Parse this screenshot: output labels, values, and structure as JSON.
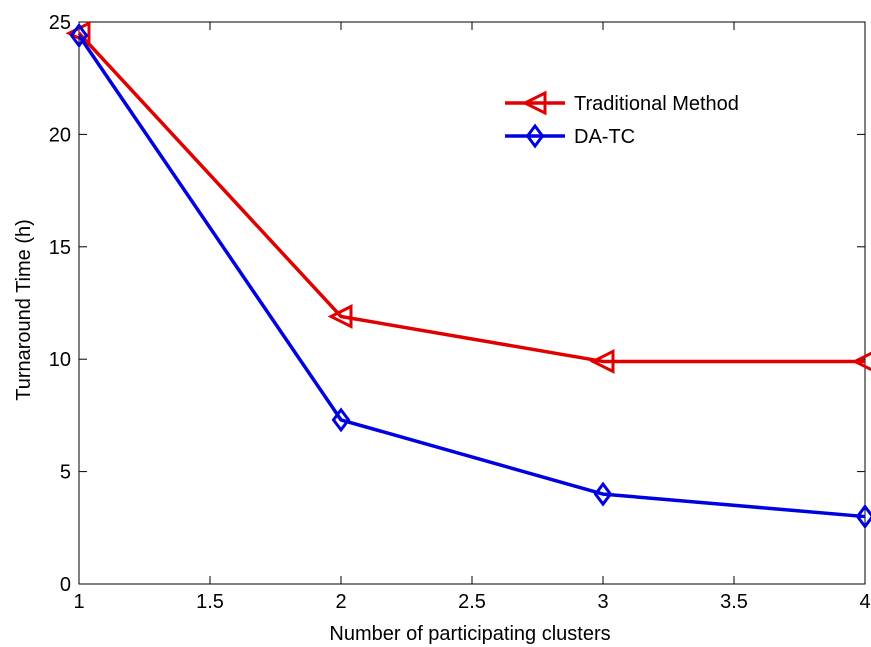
{
  "chart_data": {
    "type": "line",
    "title": "",
    "xlabel": "Number of participating clusters",
    "ylabel": "Turnaround Time (h)",
    "xlim": [
      1,
      4
    ],
    "ylim": [
      0,
      25
    ],
    "xticks": [
      "1",
      "1.5",
      "2",
      "2.5",
      "3",
      "3.5",
      "4"
    ],
    "yticks": [
      "0",
      "5",
      "10",
      "15",
      "20",
      "25"
    ],
    "grid": false,
    "legend_position": "top-right",
    "x": [
      1,
      2,
      3,
      4
    ],
    "series": [
      {
        "name": "Traditional Method",
        "values": [
          24.5,
          11.9,
          9.9,
          9.9
        ],
        "color": "#e00000",
        "marker": "triangle-left"
      },
      {
        "name": "DA-TC",
        "values": [
          24.4,
          7.3,
          4.0,
          3.0
        ],
        "color": "#0000e0",
        "marker": "diamond"
      }
    ]
  }
}
